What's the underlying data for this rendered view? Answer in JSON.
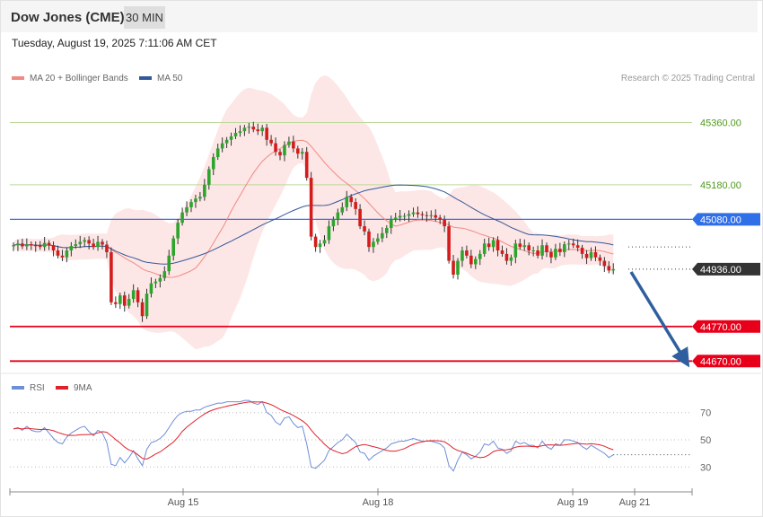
{
  "header": {
    "instrument": "Dow Jones (CME)",
    "timeframe": "30 MIN",
    "timestamp": "Tuesday, August 19, 2025 7:11:06 AM CET"
  },
  "legend": {
    "ma20_label": "MA 20 + Bollinger Bands",
    "ma50_label": "MA 50",
    "credit": "Research © 2025 Trading Central",
    "ma20_color": "#f08a84",
    "ma50_color": "#33599a"
  },
  "rsi_legend": {
    "rsi_label": "RSI",
    "ma_label": "9MA",
    "rsi_color": "#6f8ed8",
    "ma_color": "#e0222b"
  },
  "chart_data": {
    "type": "candlestick",
    "ylim": [
      44650,
      45460
    ],
    "x_tick_labels": [
      "Aug 15",
      "Aug 18",
      "Aug 19",
      "Aug 21"
    ],
    "price_levels": [
      {
        "label": "45360.00",
        "value": 45360,
        "kind": "resistance"
      },
      {
        "label": "45180.00",
        "value": 45180,
        "kind": "resistance"
      },
      {
        "label": "45080.00",
        "value": 45080,
        "kind": "pivot"
      },
      {
        "label": "44936.00",
        "value": 44936,
        "kind": "last"
      },
      {
        "label": "44770.00",
        "value": 44770,
        "kind": "support"
      },
      {
        "label": "44670.00",
        "value": 44670,
        "kind": "support"
      }
    ],
    "close": [
      45005,
      45010,
      45002,
      45008,
      45005,
      45003,
      45000,
      45012,
      45005,
      44990,
      44975,
      44970,
      44990,
      45003,
      45008,
      45015,
      45020,
      45010,
      45000,
      45015,
      45007,
      44985,
      44840,
      44835,
      44860,
      44830,
      44850,
      44875,
      44840,
      44800,
      44865,
      44895,
      44900,
      44910,
      44930,
      44975,
      45025,
      45070,
      45100,
      45115,
      45130,
      45140,
      45145,
      45180,
      45225,
      45260,
      45285,
      45300,
      45310,
      45320,
      45330,
      45335,
      45345,
      45348,
      45340,
      45335,
      45345,
      45310,
      45300,
      45275,
      45265,
      45295,
      45305,
      45285,
      45270,
      45275,
      45200,
      45030,
      45000,
      45010,
      45020,
      45060,
      45080,
      45100,
      45115,
      45145,
      45130,
      45110,
      45060,
      45045,
      45000,
      45015,
      45025,
      45040,
      45055,
      45080,
      45085,
      45090,
      45090,
      45095,
      45100,
      45095,
      45092,
      45090,
      45092,
      45085,
      45080,
      45060,
      44960,
      44920,
      44960,
      44990,
      44975,
      44950,
      44965,
      44980,
      45010,
      45000,
      45020,
      44990,
      44980,
      44960,
      44970,
      45010,
      45000,
      45005,
      44990,
      44990,
      44975,
      45005,
      44985,
      44970,
      44995,
      44985,
      45008,
      45010,
      45005,
      44998,
      44980,
      44968,
      44985,
      44970,
      44960,
      44945,
      44932,
      44936
    ],
    "rsi": [
      58,
      59,
      57,
      60,
      57,
      56,
      56,
      59,
      55,
      51,
      48,
      47,
      52,
      55,
      57,
      59,
      60,
      56,
      53,
      57,
      55,
      48,
      32,
      31,
      37,
      33,
      37,
      42,
      36,
      31,
      43,
      48,
      49,
      51,
      54,
      59,
      64,
      68,
      70,
      71,
      71,
      72,
      72,
      74,
      75,
      76,
      77,
      77,
      78,
      78,
      78,
      78,
      79,
      79,
      77,
      76,
      78,
      70,
      68,
      63,
      61,
      66,
      67,
      62,
      59,
      60,
      47,
      30,
      29,
      32,
      35,
      42,
      45,
      48,
      50,
      54,
      51,
      48,
      41,
      40,
      35,
      38,
      40,
      42,
      44,
      47,
      48,
      49,
      49,
      50,
      51,
      50,
      49,
      49,
      49,
      48,
      47,
      44,
      31,
      27,
      35,
      41,
      39,
      36,
      38,
      41,
      47,
      46,
      49,
      44,
      43,
      40,
      42,
      49,
      47,
      48,
      46,
      46,
      44,
      49,
      45,
      43,
      47,
      46,
      50,
      50,
      49,
      48,
      45,
      43,
      46,
      44,
      42,
      40,
      37,
      39
    ],
    "rsi_ylim": [
      15,
      85
    ],
    "rsi_levels": [
      {
        "label": "70",
        "value": 70
      },
      {
        "label": "50",
        "value": 50
      },
      {
        "label": "30",
        "value": 30
      }
    ]
  }
}
